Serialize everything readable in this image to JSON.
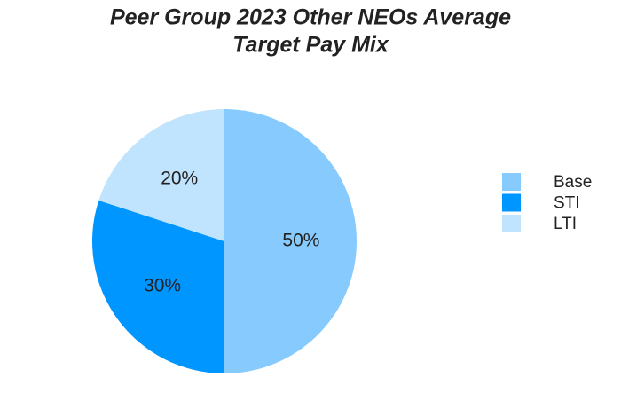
{
  "chart_data": {
    "type": "pie",
    "title": [
      "Peer Group 2023 Other NEOs Average",
      "Target Pay Mix"
    ],
    "categories": [
      "Base",
      "STI",
      "LTI"
    ],
    "values": [
      50,
      30,
      20
    ],
    "value_labels": [
      "50%",
      "30%",
      "20%"
    ],
    "colors": [
      "#87cafe",
      "#0096ff",
      "#c0e4fe"
    ],
    "legend": "right"
  }
}
